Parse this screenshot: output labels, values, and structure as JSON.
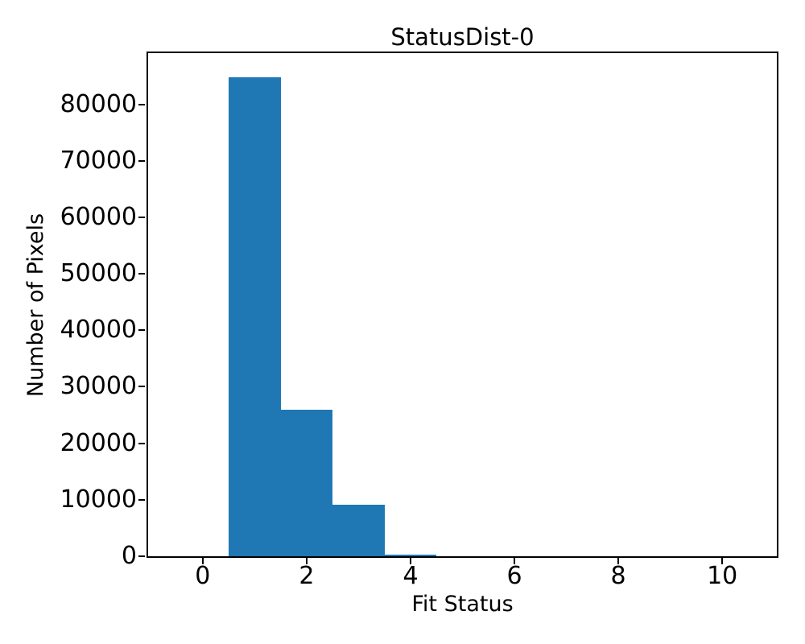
{
  "figure": {
    "title": "StatusDist-0",
    "xlabel": "Fit Status",
    "ylabel": "Number of Pixels"
  },
  "colors": {
    "bar": "#1f77b4",
    "axis": "#000000",
    "text": "#000000",
    "background": "#ffffff"
  },
  "chart_data": {
    "type": "bar",
    "subtype": "histogram",
    "title": "StatusDist-0",
    "xlabel": "Fit Status",
    "ylabel": "Number of Pixels",
    "bin_edges": [
      -0.5,
      0.5,
      1.5,
      2.5,
      3.5,
      4.5,
      5.5,
      6.5,
      7.5,
      8.5,
      9.5,
      10.5
    ],
    "bin_centers": [
      0,
      1,
      2,
      3,
      4,
      5,
      6,
      7,
      8,
      9,
      10
    ],
    "counts": [
      0,
      84800,
      26000,
      9100,
      300,
      0,
      0,
      0,
      0,
      0,
      0
    ],
    "xticks": [
      0,
      2,
      4,
      6,
      8,
      10
    ],
    "yticks": [
      0,
      10000,
      20000,
      30000,
      40000,
      50000,
      60000,
      70000,
      80000
    ],
    "xlim": [
      -1.05,
      11.05
    ],
    "ylim": [
      0,
      89040
    ],
    "grid": false,
    "legend": null,
    "bar_color": "#1f77b4"
  }
}
